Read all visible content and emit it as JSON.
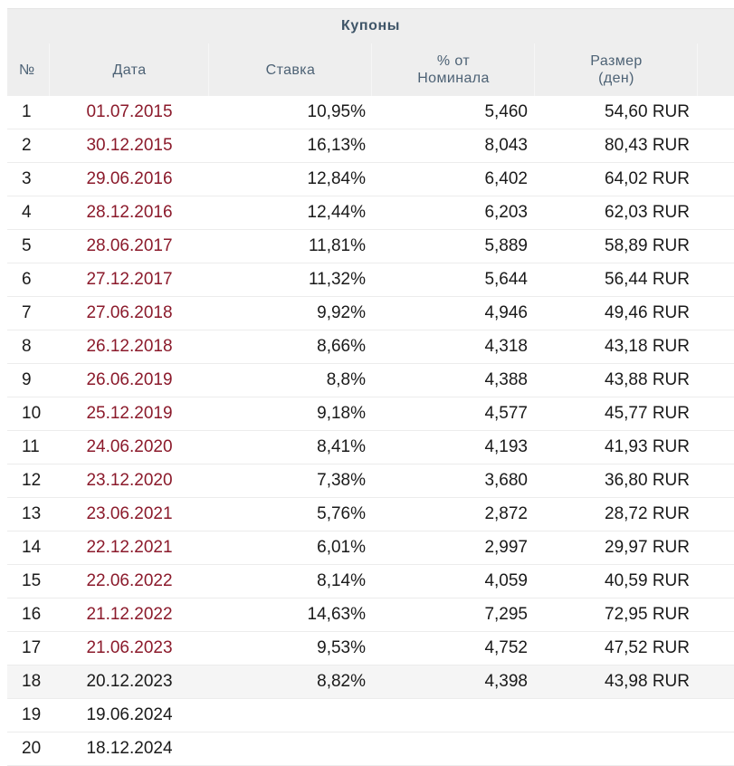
{
  "table": {
    "caption": "Купоны",
    "headers": {
      "num": "№",
      "date": "Дата",
      "rate": "Ставка",
      "pct_line1": "% от",
      "pct_line2": "Номинала",
      "size_line1": "Размер",
      "size_line2": "(ден)"
    },
    "rows": [
      {
        "num": "1",
        "date": "01.07.2015",
        "rate": "10,95%",
        "pct": "5,460",
        "amount": "54,60 RUR",
        "paid": true
      },
      {
        "num": "2",
        "date": "30.12.2015",
        "rate": "16,13%",
        "pct": "8,043",
        "amount": "80,43 RUR",
        "paid": true
      },
      {
        "num": "3",
        "date": "29.06.2016",
        "rate": "12,84%",
        "pct": "6,402",
        "amount": "64,02 RUR",
        "paid": true
      },
      {
        "num": "4",
        "date": "28.12.2016",
        "rate": "12,44%",
        "pct": "6,203",
        "amount": "62,03 RUR",
        "paid": true
      },
      {
        "num": "5",
        "date": "28.06.2017",
        "rate": "11,81%",
        "pct": "5,889",
        "amount": "58,89 RUR",
        "paid": true
      },
      {
        "num": "6",
        "date": "27.12.2017",
        "rate": "11,32%",
        "pct": "5,644",
        "amount": "56,44 RUR",
        "paid": true
      },
      {
        "num": "7",
        "date": "27.06.2018",
        "rate": "9,92%",
        "pct": "4,946",
        "amount": "49,46 RUR",
        "paid": true
      },
      {
        "num": "8",
        "date": "26.12.2018",
        "rate": "8,66%",
        "pct": "4,318",
        "amount": "43,18 RUR",
        "paid": true
      },
      {
        "num": "9",
        "date": "26.06.2019",
        "rate": "8,8%",
        "pct": "4,388",
        "amount": "43,88 RUR",
        "paid": true
      },
      {
        "num": "10",
        "date": "25.12.2019",
        "rate": "9,18%",
        "pct": "4,577",
        "amount": "45,77 RUR",
        "paid": true
      },
      {
        "num": "11",
        "date": "24.06.2020",
        "rate": "8,41%",
        "pct": "4,193",
        "amount": "41,93 RUR",
        "paid": true
      },
      {
        "num": "12",
        "date": "23.12.2020",
        "rate": "7,38%",
        "pct": "3,680",
        "amount": "36,80 RUR",
        "paid": true
      },
      {
        "num": "13",
        "date": "23.06.2021",
        "rate": "5,76%",
        "pct": "2,872",
        "amount": "28,72 RUR",
        "paid": true
      },
      {
        "num": "14",
        "date": "22.12.2021",
        "rate": "6,01%",
        "pct": "2,997",
        "amount": "29,97 RUR",
        "paid": true
      },
      {
        "num": "15",
        "date": "22.06.2022",
        "rate": "8,14%",
        "pct": "4,059",
        "amount": "40,59 RUR",
        "paid": true
      },
      {
        "num": "16",
        "date": "21.12.2022",
        "rate": "14,63%",
        "pct": "7,295",
        "amount": "72,95 RUR",
        "paid": true
      },
      {
        "num": "17",
        "date": "21.06.2023",
        "rate": "9,53%",
        "pct": "4,752",
        "amount": "47,52 RUR",
        "paid": true
      },
      {
        "num": "18",
        "date": "20.12.2023",
        "rate": "8,82%",
        "pct": "4,398",
        "amount": "43,98 RUR",
        "paid": false,
        "current": true
      },
      {
        "num": "19",
        "date": "19.06.2024",
        "rate": "",
        "pct": "",
        "amount": "",
        "paid": false
      },
      {
        "num": "20",
        "date": "18.12.2024",
        "rate": "",
        "pct": "",
        "amount": "",
        "paid": false
      }
    ]
  },
  "colors": {
    "header_bg": "#eeeeee",
    "header_text": "#4d6275",
    "paid_date": "#8b1a2b",
    "current_row_bg": "#f5f5f5"
  }
}
